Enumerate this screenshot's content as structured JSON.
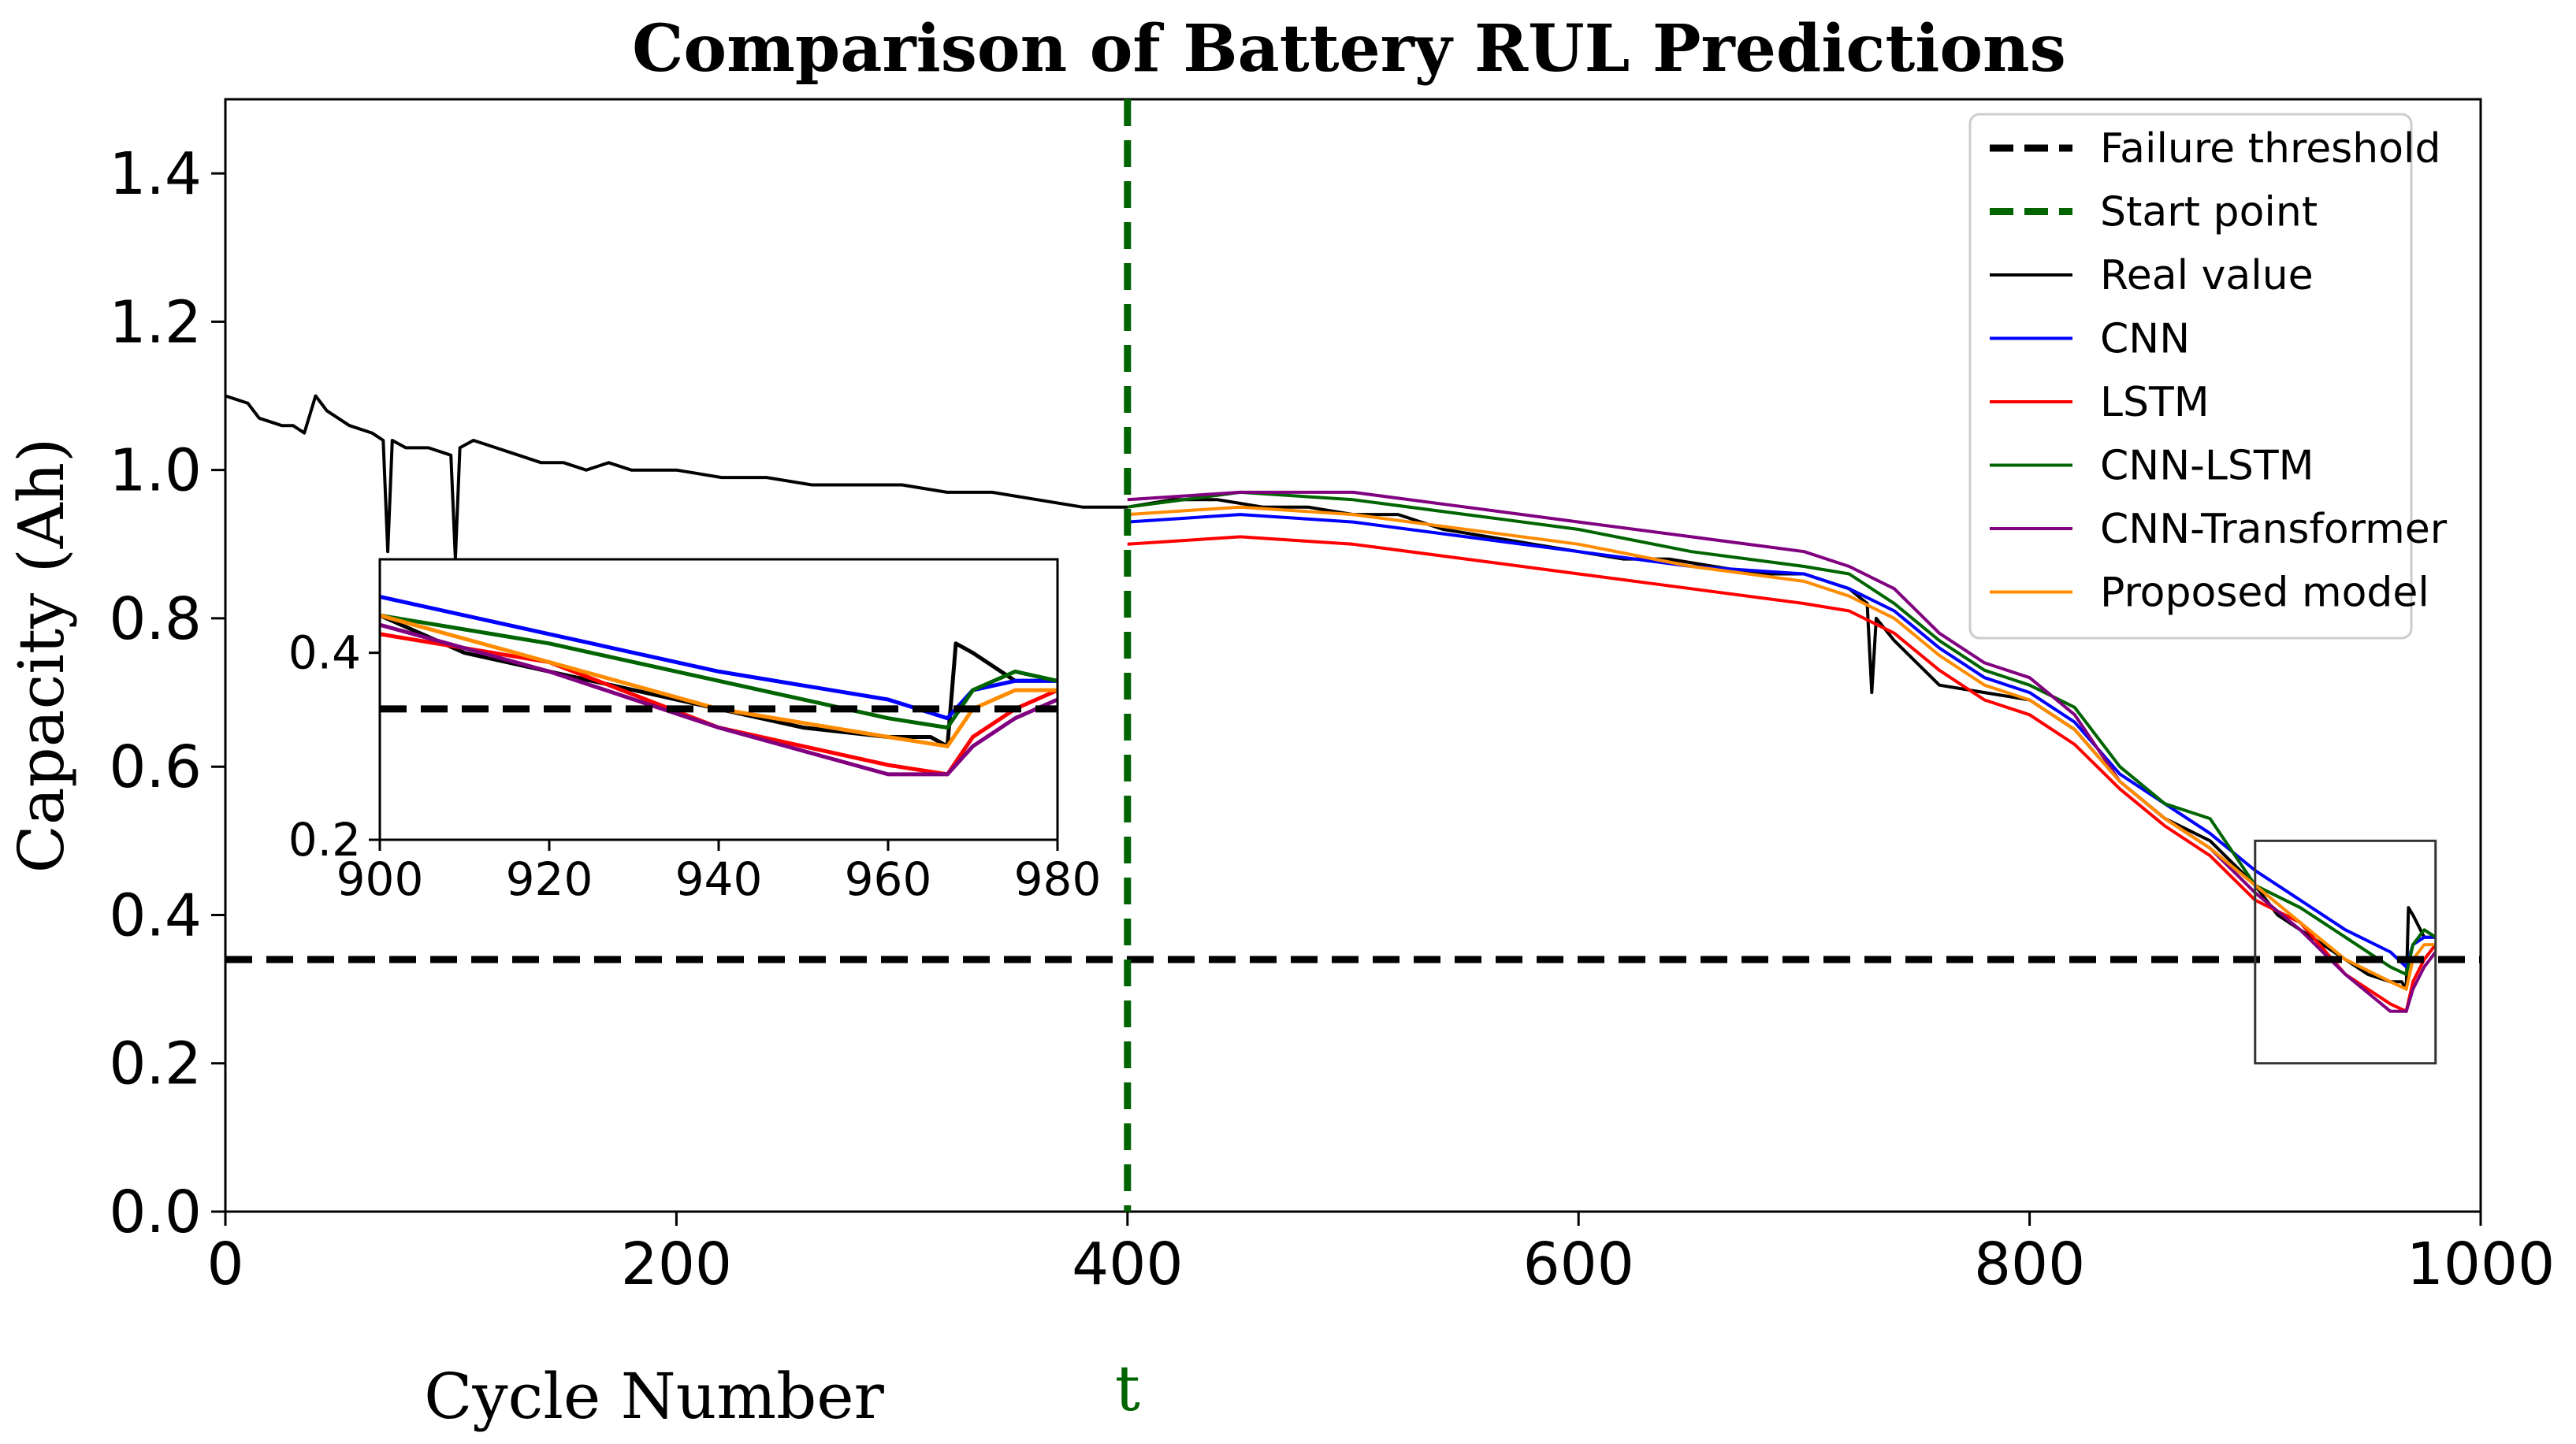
{
  "chart_data": {
    "type": "line",
    "title": "Comparison of Battery RUL Predictions",
    "xlabel": "Cycle Number",
    "ylabel": "Capacity (Ah)",
    "xlim": [
      0,
      1000
    ],
    "ylim": [
      0.0,
      1.5
    ],
    "x_ticks": [
      0,
      200,
      400,
      600,
      800,
      1000
    ],
    "y_ticks": [
      0.0,
      0.2,
      0.4,
      0.6,
      0.8,
      1.0,
      1.2,
      1.4
    ],
    "failure_threshold": 0.34,
    "start_point": 400,
    "start_label": "t",
    "legend_position": "top-right",
    "legend": [
      {
        "name": "Failure threshold",
        "color": "#000000",
        "dash": true
      },
      {
        "name": "Start point",
        "color": "#006400",
        "dash": true
      },
      {
        "name": "Real value",
        "color": "#000000",
        "dash": false
      },
      {
        "name": "CNN",
        "color": "#0000ff",
        "dash": false
      },
      {
        "name": "LSTM",
        "color": "#ff0000",
        "dash": false
      },
      {
        "name": "CNN-LSTM",
        "color": "#006400",
        "dash": false
      },
      {
        "name": "CNN-Transformer",
        "color": "#800080",
        "dash": false
      },
      {
        "name": "Proposed model",
        "color": "#ff8c00",
        "dash": false
      }
    ],
    "series": [
      {
        "name": "Real value",
        "color": "#000000",
        "x": [
          0,
          10,
          15,
          25,
          30,
          35,
          40,
          45,
          55,
          65,
          70,
          72,
          74,
          80,
          90,
          100,
          102,
          104,
          110,
          120,
          130,
          140,
          150,
          160,
          170,
          180,
          200,
          220,
          240,
          260,
          280,
          300,
          320,
          340,
          360,
          380,
          400,
          420,
          440,
          460,
          480,
          500,
          520,
          540,
          560,
          580,
          600,
          620,
          640,
          660,
          680,
          700,
          710,
          720,
          728,
          730,
          732,
          740,
          760,
          780,
          800,
          820,
          840,
          860,
          880,
          900,
          910,
          920,
          930,
          940,
          950,
          960,
          965,
          967,
          968,
          970,
          975,
          980
        ],
        "y": [
          1.1,
          1.09,
          1.07,
          1.06,
          1.06,
          1.05,
          1.1,
          1.08,
          1.06,
          1.05,
          1.04,
          0.89,
          1.04,
          1.03,
          1.03,
          1.02,
          0.88,
          1.03,
          1.04,
          1.03,
          1.02,
          1.01,
          1.01,
          1.0,
          1.01,
          1.0,
          1.0,
          0.99,
          0.99,
          0.98,
          0.98,
          0.98,
          0.97,
          0.97,
          0.96,
          0.95,
          0.95,
          0.96,
          0.96,
          0.95,
          0.95,
          0.94,
          0.94,
          0.92,
          0.91,
          0.9,
          0.89,
          0.88,
          0.88,
          0.87,
          0.86,
          0.86,
          0.85,
          0.84,
          0.82,
          0.7,
          0.8,
          0.77,
          0.71,
          0.7,
          0.69,
          0.65,
          0.58,
          0.53,
          0.5,
          0.44,
          0.4,
          0.38,
          0.36,
          0.34,
          0.32,
          0.31,
          0.31,
          0.3,
          0.41,
          0.4,
          0.37,
          0.37
        ]
      },
      {
        "name": "CNN",
        "color": "#0000ff",
        "x": [
          400,
          450,
          500,
          550,
          600,
          650,
          700,
          720,
          740,
          760,
          780,
          800,
          820,
          840,
          860,
          880,
          900,
          920,
          940,
          960,
          967,
          970,
          975,
          980
        ],
        "y": [
          0.93,
          0.94,
          0.93,
          0.91,
          0.89,
          0.87,
          0.86,
          0.84,
          0.81,
          0.76,
          0.72,
          0.7,
          0.66,
          0.59,
          0.55,
          0.51,
          0.46,
          0.42,
          0.38,
          0.35,
          0.33,
          0.36,
          0.37,
          0.37
        ]
      },
      {
        "name": "LSTM",
        "color": "#ff0000",
        "x": [
          400,
          450,
          500,
          550,
          600,
          650,
          700,
          720,
          740,
          760,
          780,
          800,
          820,
          840,
          860,
          880,
          900,
          920,
          940,
          960,
          967,
          970,
          975,
          980
        ],
        "y": [
          0.9,
          0.91,
          0.9,
          0.88,
          0.86,
          0.84,
          0.82,
          0.81,
          0.78,
          0.73,
          0.69,
          0.67,
          0.63,
          0.57,
          0.52,
          0.48,
          0.42,
          0.39,
          0.32,
          0.28,
          0.27,
          0.31,
          0.34,
          0.36
        ]
      },
      {
        "name": "CNN-LSTM",
        "color": "#006400",
        "x": [
          400,
          450,
          500,
          550,
          600,
          650,
          700,
          720,
          740,
          760,
          780,
          800,
          820,
          840,
          860,
          880,
          900,
          920,
          940,
          960,
          967,
          970,
          975,
          980
        ],
        "y": [
          0.95,
          0.97,
          0.96,
          0.94,
          0.92,
          0.89,
          0.87,
          0.86,
          0.82,
          0.77,
          0.73,
          0.71,
          0.68,
          0.6,
          0.55,
          0.53,
          0.44,
          0.41,
          0.37,
          0.33,
          0.32,
          0.36,
          0.38,
          0.37
        ]
      },
      {
        "name": "CNN-Transformer",
        "color": "#800080",
        "x": [
          400,
          450,
          500,
          550,
          600,
          650,
          700,
          720,
          740,
          760,
          780,
          800,
          820,
          840,
          860,
          880,
          900,
          920,
          940,
          960,
          967,
          970,
          975,
          980
        ],
        "y": [
          0.96,
          0.97,
          0.97,
          0.95,
          0.93,
          0.91,
          0.89,
          0.87,
          0.84,
          0.78,
          0.74,
          0.72,
          0.67,
          0.58,
          0.53,
          0.49,
          0.43,
          0.38,
          0.32,
          0.27,
          0.27,
          0.3,
          0.33,
          0.35
        ]
      },
      {
        "name": "Proposed model",
        "color": "#ff8c00",
        "x": [
          400,
          450,
          500,
          550,
          600,
          650,
          700,
          720,
          740,
          760,
          780,
          800,
          820,
          840,
          860,
          880,
          900,
          920,
          940,
          960,
          967,
          970,
          975,
          980
        ],
        "y": [
          0.94,
          0.95,
          0.94,
          0.92,
          0.9,
          0.87,
          0.85,
          0.83,
          0.8,
          0.75,
          0.71,
          0.69,
          0.65,
          0.58,
          0.53,
          0.49,
          0.44,
          0.39,
          0.34,
          0.31,
          0.3,
          0.34,
          0.36,
          0.36
        ]
      }
    ],
    "inset": {
      "xlim": [
        900,
        980
      ],
      "ylim": [
        0.2,
        0.5
      ],
      "x_ticks": [
        900,
        920,
        940,
        960,
        980
      ],
      "y_ticks": [
        0.2,
        0.4
      ],
      "y_tick_labels": [
        "0.2",
        "0.4"
      ],
      "source_box": {
        "x": [
          900,
          980
        ],
        "y": [
          0.2,
          0.5
        ]
      }
    }
  }
}
